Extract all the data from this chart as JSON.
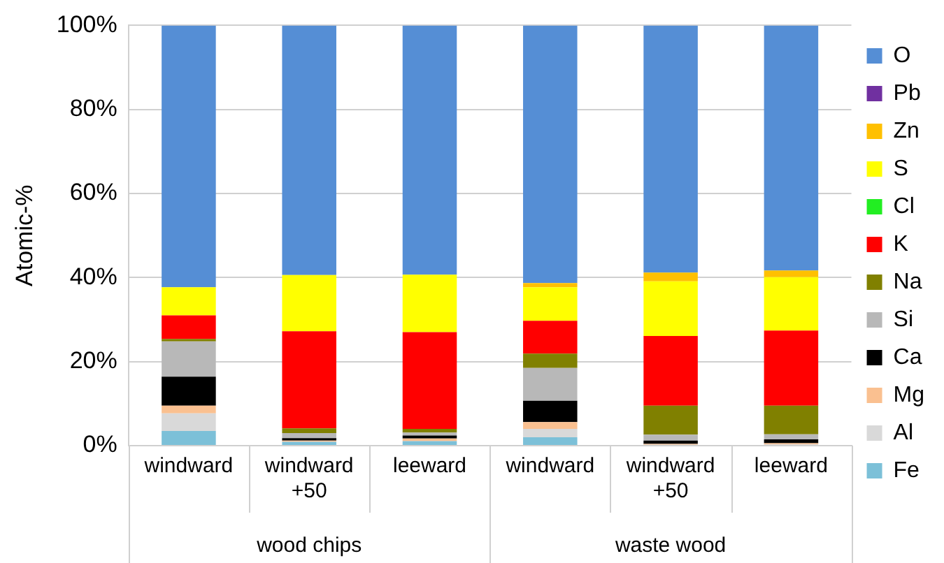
{
  "chart_data": {
    "type": "bar",
    "stacked": true,
    "ylabel": "Atomic-%",
    "categories": [
      "windward",
      "windward +50",
      "leeward",
      "windward",
      "windward +50",
      "leeward"
    ],
    "annotations": [
      "wood chips",
      "waste wood"
    ],
    "ylim": [
      0,
      100
    ],
    "yticks": [
      {
        "value": 0,
        "label": "0%"
      },
      {
        "value": 20,
        "label": "20%"
      },
      {
        "value": 40,
        "label": "40%"
      },
      {
        "value": 60,
        "label": "60%"
      },
      {
        "value": 80,
        "label": "80%"
      },
      {
        "value": 100,
        "label": "100%"
      }
    ],
    "grid": "y",
    "legend": "right",
    "series": [
      {
        "name": "Fe",
        "color": "#7cc0d8",
        "values": [
          3.5,
          0.9,
          1.1,
          2.0,
          null,
          null
        ]
      },
      {
        "name": "Al",
        "color": "#d9d9d9",
        "values": [
          4.2,
          null,
          null,
          2.0,
          0.2,
          0.3
        ]
      },
      {
        "name": "Mg",
        "color": "#fac090",
        "values": [
          1.8,
          0.3,
          0.6,
          1.6,
          0.2,
          0.3
        ]
      },
      {
        "name": "Ca",
        "color": "#000000",
        "values": [
          6.9,
          0.6,
          0.7,
          5.1,
          0.8,
          0.9
        ]
      },
      {
        "name": "Si",
        "color": "#b8b8b8",
        "values": [
          8.4,
          1.2,
          0.7,
          7.8,
          1.4,
          1.2
        ]
      },
      {
        "name": "Na",
        "color": "#808000",
        "values": [
          0.6,
          1.1,
          0.9,
          3.4,
          6.9,
          6.8
        ]
      },
      {
        "name": "K",
        "color": "#ff0000",
        "values": [
          5.6,
          23.1,
          23.0,
          7.8,
          16.6,
          17.9
        ]
      },
      {
        "name": "Cl",
        "color": "#22ee22",
        "values": [
          0,
          0,
          0,
          0,
          0,
          0
        ]
      },
      {
        "name": "S",
        "color": "#ffff00",
        "values": [
          6.7,
          13.4,
          13.7,
          8.0,
          13.0,
          12.7
        ]
      },
      {
        "name": "Zn",
        "color": "#ffc000",
        "values": [
          0,
          0,
          0,
          1.0,
          2.1,
          1.6
        ]
      },
      {
        "name": "Pb",
        "color": "#7030a0",
        "values": [
          0,
          0,
          0,
          0,
          0,
          0
        ]
      },
      {
        "name": "O",
        "color": "#558ed5",
        "values": [
          62.3,
          59.4,
          59.3,
          61.3,
          58.8,
          58.3
        ]
      }
    ]
  }
}
